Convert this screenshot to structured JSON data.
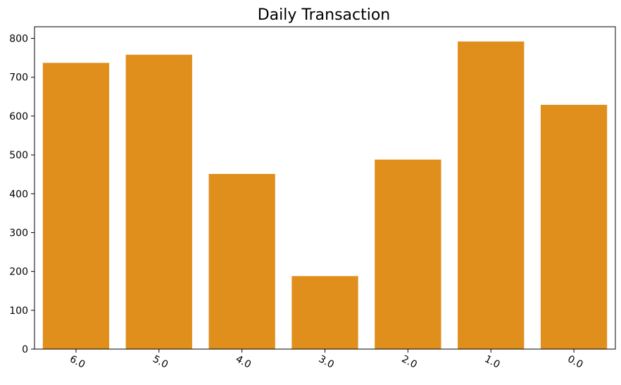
{
  "chart_data": {
    "type": "bar",
    "title": "Daily Transaction",
    "xlabel": "",
    "ylabel": "",
    "categories": [
      "6.0",
      "5.0",
      "4.0",
      "3.0",
      "2.0",
      "1.0",
      "0.0"
    ],
    "values": [
      737,
      758,
      451,
      188,
      488,
      792,
      629
    ],
    "ylim": [
      0,
      830
    ],
    "yticks": [
      "0",
      "100",
      "200",
      "300",
      "400",
      "500",
      "600",
      "700",
      "800"
    ],
    "bar_color": "#E08F1C",
    "grid": false,
    "xtick_rotation": "rotated",
    "legend": "none"
  }
}
